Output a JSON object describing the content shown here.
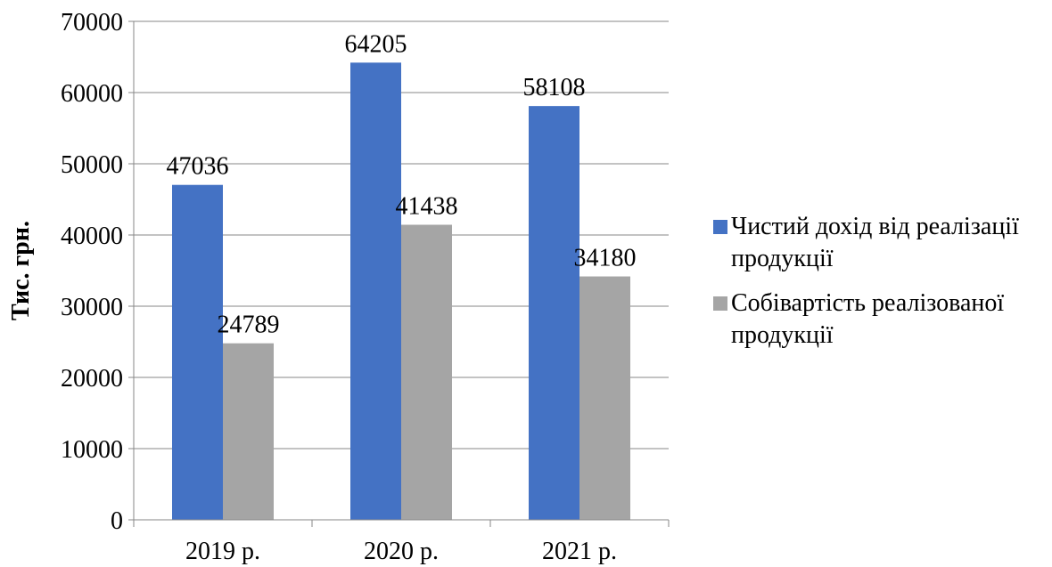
{
  "chart_data": {
    "type": "bar",
    "categories": [
      "2019 р.",
      "2020 р.",
      "2021 р."
    ],
    "series": [
      {
        "name": "Чистий дохід  від реалізації продукції",
        "values": [
          47036,
          64205,
          58108
        ],
        "color": "#4472C4"
      },
      {
        "name": "Собівартість реалізованої продукції",
        "values": [
          24789,
          41438,
          34180
        ],
        "color": "#A5A5A5"
      }
    ],
    "ylabel": "Тис. грн.",
    "ylim": [
      0,
      70000
    ],
    "yticks": [
      "0",
      "10000",
      "20000",
      "30000",
      "40000",
      "50000",
      "60000",
      "70000"
    ],
    "grid": true,
    "legend_position": "right"
  }
}
